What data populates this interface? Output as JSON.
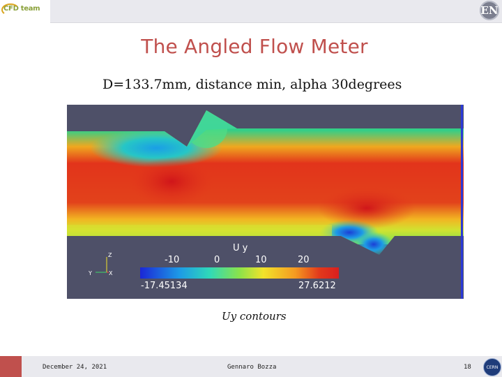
{
  "header": {
    "logo_text": "CFD team",
    "badge_text": "EN"
  },
  "slide": {
    "title": "The Angled Flow Meter",
    "subtitle": "D=133.7mm, distance min, alpha 30degrees",
    "caption": "Uy contours"
  },
  "figure": {
    "legend": {
      "variable": "U y",
      "ticks": [
        "-10",
        "0",
        "10",
        "20"
      ],
      "min_label": "-17.45134",
      "max_label": "27.6212",
      "min": -17.45134,
      "max": 27.6212
    },
    "axes": {
      "z_label": "Z",
      "y_label": "Y",
      "x_label": "X"
    },
    "colors": {
      "background": "#4e5068",
      "colormap": [
        "#1b27d6",
        "#1d9be6",
        "#2fd9b8",
        "#8be34a",
        "#f2e32a",
        "#f49a21",
        "#e23a1b",
        "#d81f1f"
      ]
    }
  },
  "footer": {
    "date": "December 24, 2021",
    "author": "Gennaro Bozza",
    "page": "18",
    "logo_text": "CERN"
  }
}
